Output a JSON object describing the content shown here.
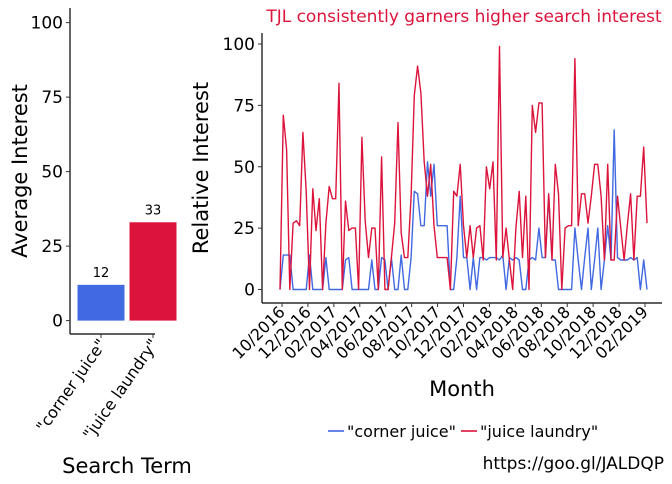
{
  "chart_data": [
    {
      "type": "bar",
      "xlabel": "Search Term",
      "ylabel": "Average Interest",
      "ylim": [
        0,
        105
      ],
      "yticks": [
        0,
        25,
        50,
        75,
        100
      ],
      "categories": [
        "\"corner juice\"",
        "\"juice laundry\""
      ],
      "values": [
        12,
        33
      ],
      "value_labels": [
        "12",
        "33"
      ],
      "colors": [
        "#4169E1",
        "#DC143C"
      ],
      "grid": false
    },
    {
      "type": "line",
      "title": "TJL consistently garners higher search interest",
      "title_color": "#DC143C",
      "xlabel": "Month",
      "ylabel": "Relative Interest",
      "ylim": [
        0,
        105
      ],
      "yticks": [
        0,
        25,
        50,
        75,
        100
      ],
      "x_start": "2016-10",
      "x_step": "week",
      "xticks": [
        "10/2016",
        "12/2016",
        "02/2017",
        "04/2017",
        "06/2017",
        "08/2017",
        "10/2017",
        "12/2017",
        "02/2018",
        "04/2018",
        "06/2018",
        "08/2018",
        "10/2018",
        "12/2018",
        "02/2019"
      ],
      "legend": "bottom",
      "grid": false,
      "series": [
        {
          "name": "\"corner juice\"",
          "color": "#4169E1",
          "values": [
            0,
            14,
            14,
            14,
            0,
            0,
            0,
            0,
            0,
            14,
            0,
            0,
            0,
            0,
            13,
            0,
            0,
            0,
            0,
            0,
            12,
            13,
            0,
            0,
            0,
            0,
            0,
            0,
            12,
            0,
            0,
            13,
            12,
            0,
            13,
            0,
            0,
            14,
            0,
            0,
            13,
            40,
            39,
            26,
            26,
            52,
            38,
            51,
            26,
            26,
            26,
            26,
            0,
            0,
            13,
            38,
            13,
            13,
            0,
            13,
            0,
            13,
            13,
            12,
            13,
            13,
            13,
            12,
            14,
            0,
            13,
            12,
            13,
            12,
            0,
            0,
            12,
            13,
            12,
            25,
            13,
            13,
            38,
            12,
            12,
            0,
            0,
            0,
            0,
            0,
            25,
            12,
            0,
            13,
            25,
            0,
            12,
            25,
            0,
            12,
            26,
            12,
            65,
            13,
            12,
            12,
            12,
            13,
            12,
            13,
            0,
            12,
            0
          ]
        },
        {
          "name": "\"juice laundry\"",
          "color": "#DC143C",
          "values": [
            0,
            71,
            57,
            0,
            27,
            28,
            26,
            64,
            40,
            0,
            41,
            24,
            37,
            0,
            27,
            42,
            37,
            37,
            84,
            0,
            36,
            24,
            25,
            25,
            0,
            62,
            28,
            13,
            25,
            25,
            0,
            54,
            0,
            0,
            13,
            27,
            68,
            23,
            13,
            13,
            38,
            79,
            91,
            80,
            52,
            38,
            51,
            26,
            13,
            13,
            13,
            13,
            0,
            40,
            38,
            51,
            26,
            13,
            26,
            13,
            25,
            26,
            12,
            50,
            41,
            52,
            12,
            99,
            13,
            25,
            12,
            0,
            25,
            40,
            13,
            38,
            0,
            75,
            64,
            76,
            76,
            13,
            39,
            12,
            51,
            39,
            0,
            25,
            26,
            26,
            94,
            26,
            39,
            39,
            27,
            38,
            51,
            51,
            38,
            12,
            51,
            12,
            12,
            38,
            25,
            12,
            26,
            39,
            12,
            38,
            38,
            58,
            27
          ]
        }
      ]
    }
  ],
  "caption": "https://goo.gl/JALDQP"
}
